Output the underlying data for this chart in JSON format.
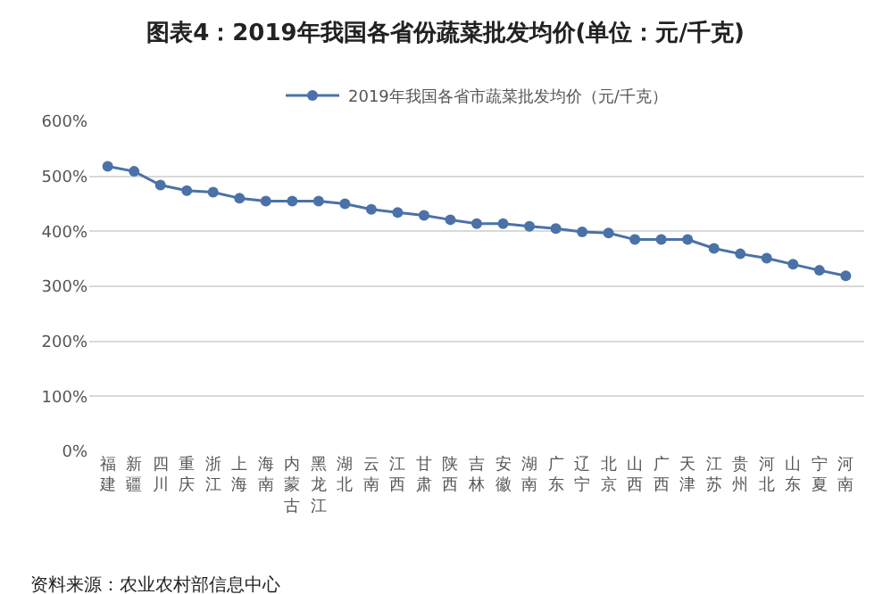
{
  "chart_data": {
    "type": "line",
    "title": "图表4：2019年我国各省份蔬菜批发均价(单位：元/千克)",
    "categories": [
      "福建",
      "新疆",
      "四川",
      "重庆",
      "浙江",
      "上海",
      "海南",
      "内蒙古",
      "黑龙江",
      "湖北",
      "云南",
      "江西",
      "甘肃",
      "陕西",
      "吉林",
      "安徽",
      "湖南",
      "广东",
      "辽宁",
      "北京",
      "山西",
      "广西",
      "天津",
      "江苏",
      "贵州",
      "河北",
      "山东",
      "宁夏",
      "河南"
    ],
    "series": [
      {
        "name": "2019年我国各省市蔬菜批发均价（元/千克）",
        "color": "#4a72a8",
        "values": [
          518,
          509,
          484,
          474,
          471,
          460,
          455,
          455,
          455,
          450,
          440,
          434,
          429,
          421,
          414,
          414,
          409,
          405,
          399,
          397,
          385,
          385,
          385,
          369,
          359,
          351,
          340,
          329,
          319
        ]
      }
    ],
    "ylim": [
      0,
      600
    ],
    "yticks": [
      {
        "value": 0,
        "label": "0%"
      },
      {
        "value": 100,
        "label": "100%"
      },
      {
        "value": 200,
        "label": "200%"
      },
      {
        "value": 300,
        "label": "300%"
      },
      {
        "value": 400,
        "label": "400%"
      },
      {
        "value": 500,
        "label": "500%"
      },
      {
        "value": 600,
        "label": "600%"
      }
    ],
    "grid": "y",
    "legend": "top",
    "marker": "circle",
    "line_style": "solid",
    "annotations": [
      "资料来源：农业农村部信息中心"
    ]
  }
}
